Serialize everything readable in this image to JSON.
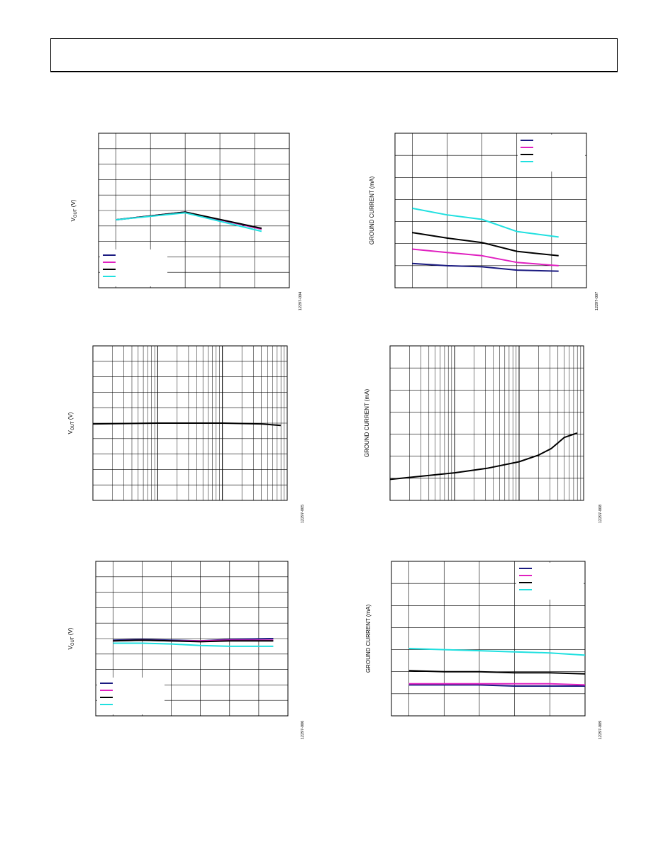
{
  "header": {
    "title": ""
  },
  "chart_data": [
    {
      "id": "vout-vs-temp",
      "type": "line",
      "ylabel": "V OUT (V)",
      "ylabel_main": "V",
      "ylabel_sub": "OUT",
      "ylabel_unit": " (V)",
      "figure_id": "12297-004",
      "x_grid": 5,
      "y_grid": 10,
      "xlim": [
        0,
        5
      ],
      "ylim": [
        0,
        10
      ],
      "legend_position": "bottom-left",
      "series": [
        {
          "color": "#1a1a80",
          "x": [
            0,
            2,
            4.2
          ],
          "y": [
            4.4,
            4.9,
            3.8
          ]
        },
        {
          "color": "#e020c0",
          "x": [
            0,
            2,
            4.2
          ],
          "y": [
            4.4,
            4.9,
            3.8
          ]
        },
        {
          "color": "#000000",
          "x": [
            0,
            2,
            4.2
          ],
          "y": [
            4.4,
            4.9,
            3.85
          ]
        },
        {
          "color": "#20e0e0",
          "x": [
            0,
            2,
            4.2
          ],
          "y": [
            4.4,
            4.85,
            3.65
          ]
        }
      ]
    },
    {
      "id": "ground-current-vs-temp",
      "type": "line",
      "ylabel": "GROUND CURRENT (mA)",
      "figure_id": "12297-007",
      "x_grid": 5,
      "y_grid": 7,
      "xlim": [
        0,
        5
      ],
      "ylim": [
        0,
        7
      ],
      "legend_position": "top-right",
      "series": [
        {
          "color": "#1a1a80",
          "x": [
            0,
            1,
            2,
            3,
            4.2
          ],
          "y": [
            1.1,
            1.0,
            0.95,
            0.8,
            0.75
          ]
        },
        {
          "color": "#e020c0",
          "x": [
            0,
            1,
            2,
            3,
            4.2
          ],
          "y": [
            1.75,
            1.6,
            1.45,
            1.15,
            1.0
          ]
        },
        {
          "color": "#000000",
          "x": [
            0,
            1,
            2,
            3,
            4.2
          ],
          "y": [
            2.5,
            2.25,
            2.05,
            1.65,
            1.45
          ]
        },
        {
          "color": "#20e0e0",
          "x": [
            0,
            1,
            2,
            3,
            4.2
          ],
          "y": [
            3.6,
            3.3,
            3.1,
            2.55,
            2.3
          ]
        }
      ]
    },
    {
      "id": "vout-vs-load",
      "type": "line",
      "ylabel_main": "V",
      "ylabel_sub": "OUT",
      "ylabel_unit": " (V)",
      "figure_id": "12297-005",
      "x_scale": "log",
      "y_grid": 10,
      "xlim": [
        0,
        3
      ],
      "ylim": [
        0,
        10
      ],
      "series": [
        {
          "color": "#000000",
          "x": [
            0,
            1,
            2,
            2.6,
            2.9
          ],
          "y": [
            4.95,
            5.0,
            5.0,
            4.95,
            4.85
          ]
        }
      ]
    },
    {
      "id": "ground-current-vs-load",
      "type": "line",
      "ylabel": "GROUND CURRENT (mA)",
      "figure_id": "12297-008",
      "x_scale": "log",
      "y_grid": 7,
      "xlim": [
        0,
        3
      ],
      "ylim": [
        0,
        7
      ],
      "series": [
        {
          "color": "#000000",
          "x": [
            0,
            0.5,
            1,
            1.5,
            2,
            2.3,
            2.5,
            2.7,
            2.9
          ],
          "y": [
            0.95,
            1.1,
            1.25,
            1.45,
            1.75,
            2.05,
            2.35,
            2.85,
            3.05
          ]
        }
      ]
    },
    {
      "id": "vout-vs-vin",
      "type": "line",
      "ylabel_main": "V",
      "ylabel_sub": "OUT",
      "ylabel_unit": " (V)",
      "figure_id": "12297-006",
      "x_grid": 6,
      "y_grid": 10,
      "xlim": [
        0,
        6
      ],
      "ylim": [
        0,
        10
      ],
      "legend_position": "bottom-left",
      "series": [
        {
          "color": "#1a1a80",
          "x": [
            0,
            1,
            2,
            3,
            4,
            5.5
          ],
          "y": [
            4.9,
            4.95,
            4.9,
            4.85,
            4.95,
            5.0
          ]
        },
        {
          "color": "#e020c0",
          "x": [
            0,
            1,
            2,
            3,
            4,
            5.5
          ],
          "y": [
            4.85,
            4.9,
            4.85,
            4.85,
            4.9,
            4.9
          ]
        },
        {
          "color": "#000000",
          "x": [
            0,
            1,
            2,
            3,
            4,
            5.5
          ],
          "y": [
            4.85,
            4.9,
            4.85,
            4.8,
            4.85,
            4.85
          ]
        },
        {
          "color": "#20e0e0",
          "x": [
            0,
            1,
            2,
            3,
            4,
            5.5
          ],
          "y": [
            4.7,
            4.7,
            4.65,
            4.55,
            4.5,
            4.5
          ]
        }
      ]
    },
    {
      "id": "ground-current-vs-vin",
      "type": "line",
      "ylabel": "GROUND CURRENT (mA)",
      "figure_id": "12297-009",
      "x_grid": 5,
      "y_grid": 7,
      "xlim": [
        0,
        5
      ],
      "ylim": [
        0,
        7
      ],
      "legend_position": "top-right",
      "series": [
        {
          "color": "#1a1a80",
          "x": [
            0,
            1,
            2,
            3,
            4,
            5
          ],
          "y": [
            1.4,
            1.4,
            1.4,
            1.35,
            1.35,
            1.35
          ]
        },
        {
          "color": "#e020c0",
          "x": [
            0,
            1,
            2,
            3,
            4,
            5
          ],
          "y": [
            1.45,
            1.45,
            1.45,
            1.45,
            1.45,
            1.4
          ]
        },
        {
          "color": "#000000",
          "x": [
            0,
            1,
            2,
            3,
            4,
            5
          ],
          "y": [
            2.05,
            2.0,
            2.0,
            1.95,
            1.95,
            1.9
          ]
        },
        {
          "color": "#20e0e0",
          "x": [
            0,
            1,
            2,
            3,
            4,
            5
          ],
          "y": [
            3.05,
            3.0,
            2.95,
            2.9,
            2.85,
            2.75
          ]
        }
      ]
    }
  ]
}
